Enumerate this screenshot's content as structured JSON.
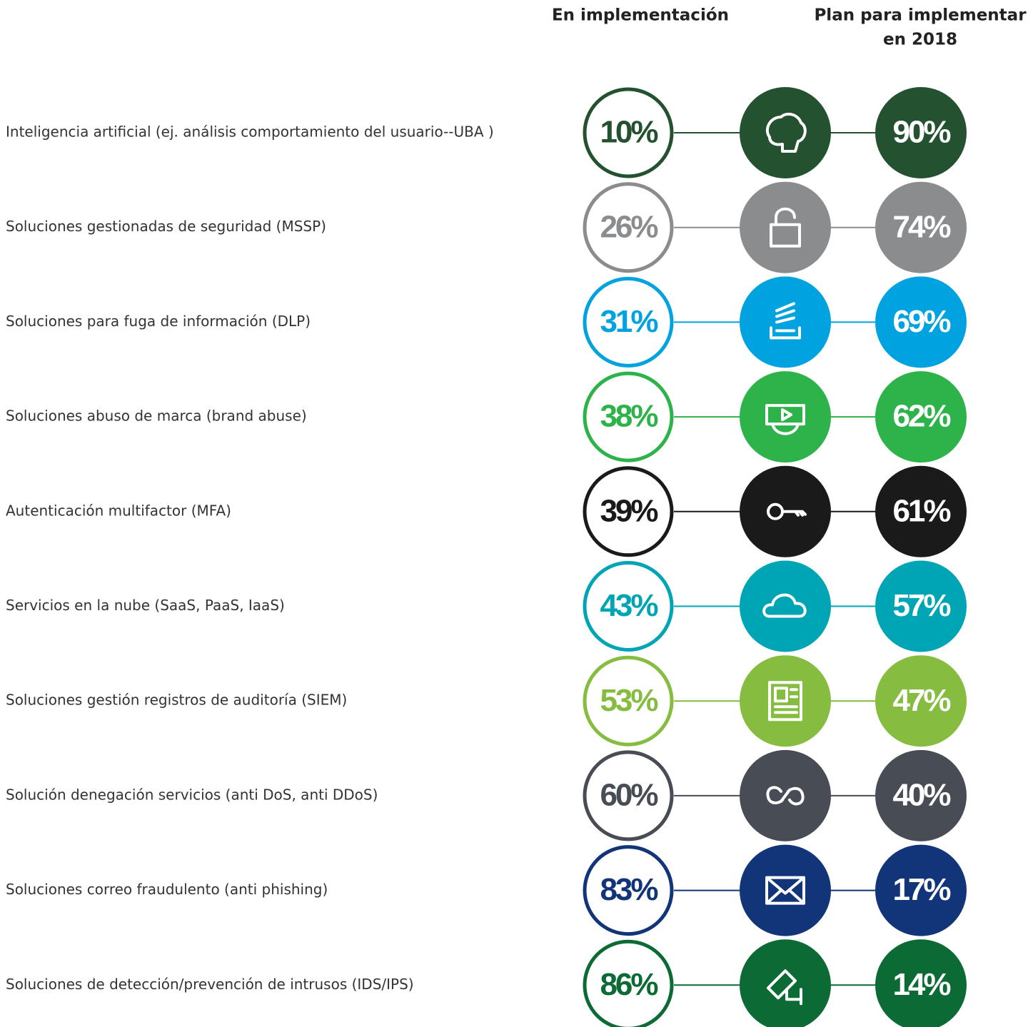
{
  "header": {
    "implemented": "En implementación",
    "planned": [
      "Plan para implementar",
      "en 2018"
    ]
  },
  "rows": [
    {
      "label": "Inteligencia artificial (ej. análisis comportamiento del usuario--UBA )",
      "implemented": "10%",
      "planned": "90%",
      "color": "#24512f"
    },
    {
      "label": "Soluciones gestionadas de seguridad (MSSP)",
      "implemented": "26%",
      "planned": "74%",
      "color": "#8a8c8e"
    },
    {
      "label": "Soluciones para fuga de información (DLP)",
      "implemented": "31%",
      "planned": "69%",
      "color": "#00a3e0"
    },
    {
      "label": "Soluciones abuso de marca (brand abuse)",
      "implemented": "38%",
      "planned": "62%",
      "color": "#2db34a"
    },
    {
      "label": "Autenticación multifactor (MFA)",
      "implemented": "39%",
      "planned": "61%",
      "color": "#1a1a1a"
    },
    {
      "label": "Servicios en la nube (SaaS, PaaS, IaaS)",
      "implemented": "43%",
      "planned": "57%",
      "color": "#00a5b5"
    },
    {
      "label": "Soluciones gestión registros de auditoría (SIEM)",
      "implemented": "53%",
      "planned": "47%",
      "color": "#86bc40"
    },
    {
      "label": "Solución denegación servicios (anti DoS, anti DDoS)",
      "implemented": "60%",
      "planned": "40%",
      "color": "#474c55"
    },
    {
      "label": "Soluciones correo fraudulento (anti phishing)",
      "implemented": "83%",
      "planned": "17%",
      "color": "#12357a"
    },
    {
      "label": "Soluciones de detección/prevención de intrusos (IDS/IPS)",
      "implemented": "86%",
      "planned": "14%",
      "color": "#0c6a34"
    }
  ]
}
